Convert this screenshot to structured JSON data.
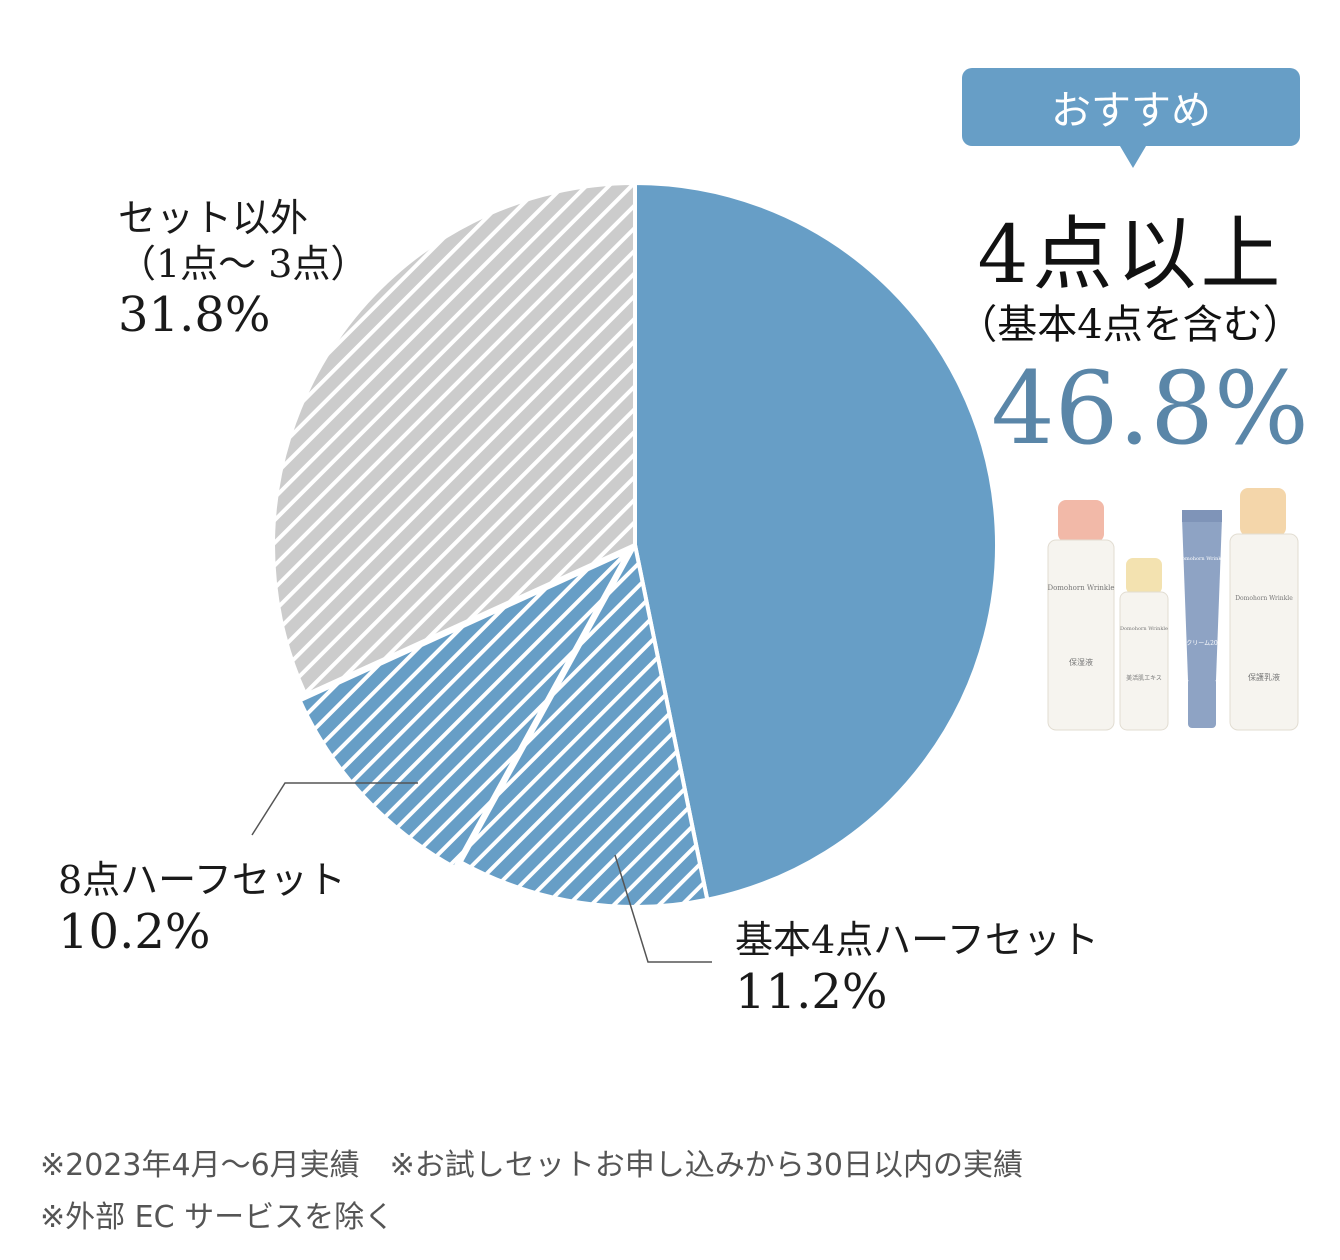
{
  "chart_data": {
    "type": "pie",
    "slices": [
      {
        "label": "4点以上",
        "sublabel": "（基本4点を含む）",
        "value": 46.8,
        "value_text": "46.8%",
        "color": "#679ec6",
        "pattern": "solid"
      },
      {
        "label": "基本4点ハーフセット",
        "sublabel": "",
        "value": 11.2,
        "value_text": "11.2%",
        "color": "#679ec6",
        "pattern": "stripes"
      },
      {
        "label": "8点ハーフセット",
        "sublabel": "",
        "value": 10.2,
        "value_text": "10.2%",
        "color": "#679ec6",
        "pattern": "stripes"
      },
      {
        "label": "セット以外",
        "sublabel": "（1点〜 3点）",
        "value": 31.8,
        "value_text": "31.8%",
        "color": "#cccccc",
        "pattern": "stripes"
      }
    ],
    "start_angle": "12 o'clock",
    "direction": "clockwise"
  },
  "recommend": {
    "badge": "おすすめ",
    "title": "4点以上",
    "subtitle": "（基本4点を含む）",
    "percent": "46.8%"
  },
  "labels": {
    "others": {
      "name": "セット以外",
      "sub": "（1点〜 3点）",
      "pct": "31.8%"
    },
    "eight_half": {
      "name": "8点ハーフセット",
      "pct": "10.2%"
    },
    "basic4_half": {
      "name": "基本4点ハーフセット",
      "pct": "11.2%"
    }
  },
  "products": [
    {
      "name": "Domohorn Wrinkle",
      "text": "保湿液",
      "cap_color": "#f2b9a8"
    },
    {
      "name": "Domohorn Wrinkle",
      "text": "美活肌エキス",
      "cap_color": "#f3e2b0"
    },
    {
      "name": "Domohorn Wrinkle",
      "text": "クリーム20",
      "cap_color": "#7f94b8"
    },
    {
      "name": "Domohorn Wrinkle",
      "text": "保護乳液",
      "cap_color": "#f4d6aa"
    }
  ],
  "footnotes": {
    "line1": "※2023年4月〜6月実績　※お試しセットお申し込みから30日以内の実績",
    "line2": "※外部 EC サービスを除く"
  }
}
